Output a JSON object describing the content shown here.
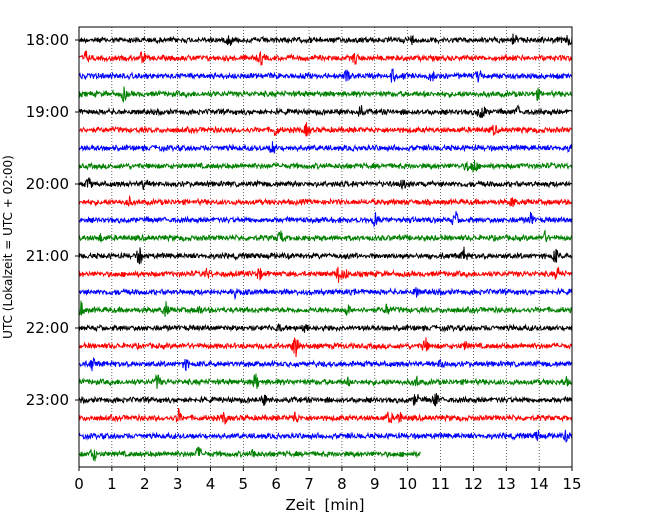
{
  "chart_data": {
    "type": "line",
    "title": "",
    "xlabel": "Zeit  [min]",
    "ylabel": "UTC (Lokalzeit = UTC + 02:00)",
    "xlim": [
      0,
      15
    ],
    "x_ticks": [
      "0",
      "1",
      "2",
      "3",
      "4",
      "5",
      "6",
      "7",
      "8",
      "9",
      "10",
      "11",
      "12",
      "13",
      "14",
      "15"
    ],
    "y_ticks": [
      "18:00",
      "19:00",
      "20:00",
      "21:00",
      "22:00",
      "23:00"
    ],
    "grid": "vertical dotted at each minute",
    "trace_interval_min": 15,
    "trace_color_cycle": [
      "#000000",
      "#ff0000",
      "#0000ff",
      "#008000"
    ],
    "series": [
      {
        "start": "18:00",
        "end_min": 15
      },
      {
        "start": "18:15",
        "end_min": 15
      },
      {
        "start": "18:30",
        "end_min": 15
      },
      {
        "start": "18:45",
        "end_min": 15
      },
      {
        "start": "19:00",
        "end_min": 15
      },
      {
        "start": "19:15",
        "end_min": 15
      },
      {
        "start": "19:30",
        "end_min": 15
      },
      {
        "start": "19:45",
        "end_min": 15
      },
      {
        "start": "20:00",
        "end_min": 15
      },
      {
        "start": "20:15",
        "end_min": 15
      },
      {
        "start": "20:30",
        "end_min": 15
      },
      {
        "start": "20:45",
        "end_min": 15
      },
      {
        "start": "21:00",
        "end_min": 15
      },
      {
        "start": "21:15",
        "end_min": 15
      },
      {
        "start": "21:30",
        "end_min": 15
      },
      {
        "start": "21:45",
        "end_min": 15
      },
      {
        "start": "22:00",
        "end_min": 15
      },
      {
        "start": "22:15",
        "end_min": 15
      },
      {
        "start": "22:30",
        "end_min": 15
      },
      {
        "start": "22:45",
        "end_min": 15
      },
      {
        "start": "23:00",
        "end_min": 15
      },
      {
        "start": "23:15",
        "end_min": 15
      },
      {
        "start": "23:30",
        "end_min": 15
      },
      {
        "start": "23:45",
        "end_min": 10.4
      }
    ]
  }
}
